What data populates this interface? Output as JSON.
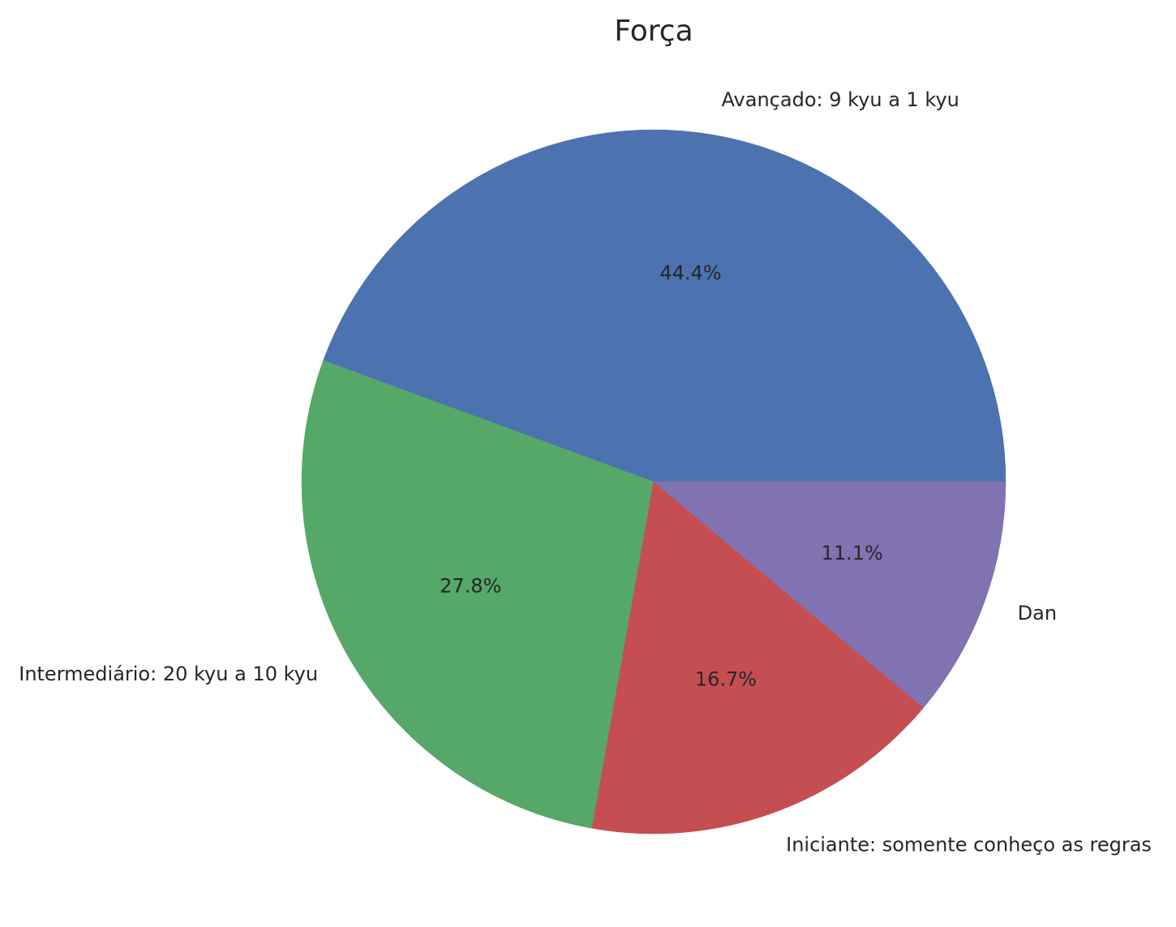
{
  "chart_data": {
    "type": "pie",
    "title": "Força",
    "categories": [
      "Avançado: 9 kyu a 1 kyu",
      "Intermediário: 20 kyu a 10 kyu",
      "Iniciante: somente conheço as regras",
      "Dan"
    ],
    "values": [
      44.4,
      27.8,
      16.7,
      11.1
    ],
    "value_labels": [
      "44.4%",
      "27.8%",
      "16.7%",
      "11.1%"
    ],
    "colors": [
      "#4c72b0",
      "#55a868",
      "#c44e52",
      "#8172b2"
    ],
    "start_angle_deg": 0,
    "direction": "counterclockwise",
    "legend": "none"
  }
}
